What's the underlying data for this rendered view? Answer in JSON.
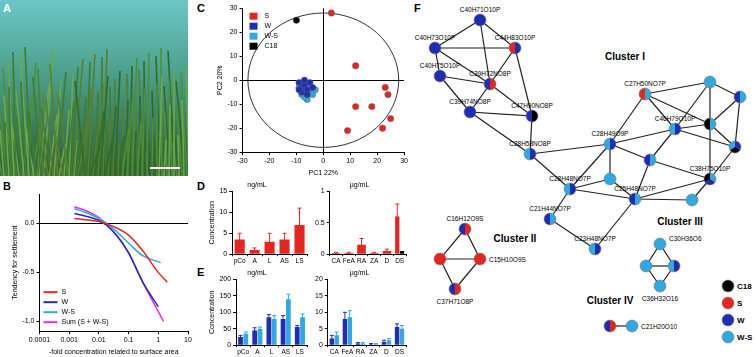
{
  "panel_labels": [
    "A",
    "B",
    "C",
    "D",
    "E",
    "F"
  ],
  "chart_data": [
    {
      "type": "line",
      "x_label": "-fold concentration related to surface area",
      "y_label": "Tendency for settlement",
      "log": "x",
      "xlim": [
        0.0001,
        10
      ],
      "xticks": [
        0.0001,
        0.001,
        0.01,
        0.1,
        1,
        10
      ],
      "ylim": [
        -1.1,
        0.3
      ],
      "yticks": [
        {
          "value": -1,
          "label": "-1.0"
        },
        {
          "value": -0.5,
          "label": "-0.5"
        },
        {
          "value": 0,
          "label": "0.0"
        }
      ],
      "grid": false,
      "legend": "lower left",
      "series": [
        {
          "name": "S",
          "color": "#e3261f",
          "x": [
            0.0015,
            0.003,
            0.01,
            0.03,
            0.1,
            0.3,
            1,
            2
          ],
          "values": [
            0.05,
            0.04,
            0.02,
            -0.03,
            -0.12,
            -0.28,
            -0.5,
            -0.6
          ]
        },
        {
          "name": "W",
          "color": "#1f2db5",
          "x": [
            0.0015,
            0.003,
            0.01,
            0.03,
            0.1,
            0.3,
            1
          ],
          "values": [
            0.1,
            0.08,
            0.03,
            -0.08,
            -0.3,
            -0.6,
            -0.85
          ]
        },
        {
          "name": "W-S",
          "color": "#2fa9e0",
          "x": [
            0.0015,
            0.003,
            0.01,
            0.03,
            0.1,
            0.3,
            1.2
          ],
          "values": [
            0.15,
            0.12,
            0.05,
            -0.05,
            -0.2,
            -0.33,
            -0.4
          ]
        },
        {
          "name": "Sum (S + W-S)",
          "color": "#e62ee6",
          "x": [
            0.0015,
            0.003,
            0.01,
            0.03,
            0.1,
            0.3,
            1,
            1.5
          ],
          "values": [
            0.17,
            0.14,
            0.06,
            -0.08,
            -0.3,
            -0.6,
            -0.9,
            -1.0
          ]
        }
      ]
    },
    {
      "type": "scatter",
      "x_label": "PC1 22%",
      "y_label": "PC2 20%",
      "xlim": [
        -30,
        30
      ],
      "xticks": [
        -30,
        -20,
        -10,
        0,
        10,
        20,
        30
      ],
      "ylim": [
        -30,
        30
      ],
      "yticks": [
        -30,
        -20,
        -10,
        0,
        10,
        20,
        30
      ],
      "grid": false,
      "legend": "upper left",
      "ellipse": {
        "center": [
          0,
          0
        ],
        "radii": [
          28,
          28
        ]
      },
      "series": [
        {
          "name": "S",
          "color": "#e3261f",
          "x": [
            3,
            12,
            12,
            18,
            23,
            24,
            25,
            22,
            9
          ],
          "values": [
            28,
            6,
            -11,
            -11,
            -3,
            -6,
            -16,
            -20,
            -21
          ]
        },
        {
          "name": "W",
          "color": "#1f2db5",
          "x": [
            -9,
            -8,
            -7,
            -6,
            -5,
            -8,
            -6,
            -4,
            -9,
            -7
          ],
          "values": [
            -1,
            -3,
            -2,
            -4,
            -1,
            -5,
            -6,
            -3,
            -4,
            0
          ]
        },
        {
          "name": "W-S",
          "color": "#2fa9e0",
          "x": [
            -8,
            -7,
            -6,
            -5,
            -9,
            -6,
            -4,
            -7,
            -5,
            -8,
            -3
          ],
          "values": [
            -2,
            -4,
            -2,
            -5,
            -3,
            -8,
            -6,
            -7,
            -3,
            -6,
            -4
          ]
        },
        {
          "name": "C18",
          "color": "#000000",
          "x": [
            -10
          ],
          "values": [
            25
          ]
        }
      ]
    },
    {
      "type": "bar",
      "title": "ng/mL",
      "y_label": "Concentration",
      "categories": [
        "pCo",
        "A",
        "L",
        "AS",
        "LS"
      ],
      "ylim": [
        0,
        15
      ],
      "yticks": [
        0,
        5,
        10,
        15
      ],
      "grid": false,
      "series": [
        {
          "color": "#e3261f",
          "values": [
            3.5,
            1,
            3,
            3.5,
            7
          ],
          "errors": [
            1.5,
            0.5,
            2,
            1.5,
            4
          ]
        }
      ]
    },
    {
      "type": "bar",
      "title": "µg/mL",
      "categories": [
        "CA",
        "FeA",
        "RA",
        "ZA",
        "D",
        "DS"
      ],
      "ylim": [
        0,
        1
      ],
      "yticks": [
        0,
        0.5,
        1
      ],
      "grid": false,
      "series": [
        {
          "color": "#e3261f",
          "values": [
            0.02,
            0.02,
            0.15,
            0.02,
            0.05,
            0.6
          ],
          "errors": [
            0.01,
            0.01,
            0.1,
            0.01,
            0.03,
            0.2
          ]
        },
        {
          "color": "#000000",
          "values": [
            null,
            null,
            null,
            null,
            null,
            0.05
          ]
        }
      ]
    },
    {
      "type": "bar",
      "title": "ng/mL",
      "y_label": "Concentration",
      "categories": [
        "pCo",
        "A",
        "L",
        "AS",
        "LS"
      ],
      "ylim": [
        0,
        200
      ],
      "yticks": [
        0,
        50,
        100,
        150,
        200
      ],
      "grid": false,
      "series": [
        {
          "color": "#1f2db5",
          "values": [
            25,
            45,
            85,
            80,
            55
          ],
          "errors": [
            5,
            8,
            8,
            10,
            5
          ]
        },
        {
          "color": "#2fa9e0",
          "values": [
            35,
            50,
            80,
            140,
            85
          ],
          "errors": [
            5,
            5,
            10,
            15,
            10
          ]
        }
      ]
    },
    {
      "type": "bar",
      "title": "µg/mL",
      "categories": [
        "CA",
        "FeA",
        "RA",
        "ZA",
        "D",
        "DS"
      ],
      "ylim": [
        0,
        20
      ],
      "yticks": [
        0,
        5,
        10,
        15,
        20
      ],
      "grid": false,
      "series": [
        {
          "color": "#1f2db5",
          "values": [
            2,
            8,
            0.5,
            0.3,
            1,
            5.5
          ],
          "errors": [
            1,
            2,
            0.3,
            0.2,
            0.5,
            1
          ]
        },
        {
          "color": "#2fa9e0",
          "values": [
            3,
            8.5,
            0.5,
            0.3,
            1.5,
            5
          ],
          "errors": [
            1,
            2,
            0.3,
            0.2,
            0.5,
            1
          ]
        }
      ]
    }
  ],
  "network": {
    "clusters": [
      "Cluster I",
      "Cluster II",
      "Cluster III",
      "Cluster IV"
    ],
    "legend": [
      {
        "name": "C18",
        "color": "#000000"
      },
      {
        "name": "S",
        "color": "#e3261f"
      },
      {
        "name": "W",
        "color": "#1f2db5"
      },
      {
        "name": "W-S",
        "color": "#2fa9e0"
      }
    ],
    "nodes": [
      {
        "label": "C40H71O10P",
        "groups": [
          "W"
        ]
      },
      {
        "label": "C40H73O10P",
        "groups": [
          "W"
        ]
      },
      {
        "label": "C44H83O10P",
        "groups": [
          "W",
          "S"
        ]
      },
      {
        "label": "C40H75O10P",
        "groups": [
          "W"
        ]
      },
      {
        "label": "C39H72NO8P",
        "groups": [
          "S",
          "W"
        ]
      },
      {
        "label": "C39H74NO8P",
        "groups": [
          "W"
        ]
      },
      {
        "label": "C47H90NO8P",
        "groups": [
          "C18",
          "W"
        ]
      },
      {
        "label": "C28H58NO8P",
        "groups": [
          "W",
          "W-S"
        ]
      },
      {
        "label": "C27H50NO7P",
        "groups": [
          "W-S",
          "S"
        ]
      },
      {
        "label": null,
        "groups": [
          "W-S"
        ]
      },
      {
        "label": null,
        "groups": [
          "W-S",
          "W"
        ]
      },
      {
        "label": "C46H79O10P",
        "groups": [
          "W",
          "W-S"
        ]
      },
      {
        "label": null,
        "groups": [
          "W-S",
          "C18"
        ]
      },
      {
        "label": "C28H49O9P",
        "groups": [
          "W",
          "W-S"
        ]
      },
      {
        "label": null,
        "groups": [
          "W-S",
          "W"
        ]
      },
      {
        "label": null,
        "groups": [
          "W",
          "C18",
          "W-S"
        ]
      },
      {
        "label": "C28H48NO7P",
        "groups": [
          "W",
          "W-S"
        ]
      },
      {
        "label": "C25H48NO7P",
        "groups": [
          "W-S",
          "W"
        ]
      },
      {
        "label": "C38H75O10P",
        "groups": [
          "W-S",
          "W",
          "C18"
        ]
      },
      {
        "label": null,
        "groups": [
          "W-S"
        ]
      },
      {
        "label": "C21H44NO7P",
        "groups": [
          "W-S",
          "W"
        ]
      },
      {
        "label": "C23H48NO7P",
        "groups": [
          "W",
          "W-S"
        ]
      },
      {
        "label": null,
        "groups": [
          "W-S"
        ]
      },
      {
        "label": "C16H12O9S",
        "groups": [
          "S",
          "W"
        ]
      },
      {
        "label": null,
        "groups": [
          "S"
        ]
      },
      {
        "label": "C15H10O9S",
        "groups": [
          "S"
        ]
      },
      {
        "label": "C37H71O8P",
        "groups": [
          "S",
          "W"
        ]
      },
      {
        "label": "C30H36O6",
        "groups": [
          "W-S"
        ]
      },
      {
        "label": null,
        "groups": [
          "W-S"
        ]
      },
      {
        "label": null,
        "groups": [
          "W",
          "W-S"
        ]
      },
      {
        "label": "C36H32O16",
        "groups": [
          "W-S"
        ]
      },
      {
        "label": null,
        "groups": [
          "S",
          "W"
        ]
      },
      {
        "label": "C21H20O10",
        "groups": [
          "W-S"
        ]
      }
    ],
    "edges": [
      [
        0,
        1
      ],
      [
        0,
        2
      ],
      [
        0,
        4
      ],
      [
        1,
        2
      ],
      [
        1,
        3
      ],
      [
        1,
        4
      ],
      [
        2,
        4
      ],
      [
        3,
        4
      ],
      [
        3,
        5
      ],
      [
        4,
        5
      ],
      [
        4,
        6
      ],
      [
        2,
        6
      ],
      [
        5,
        6
      ],
      [
        6,
        7
      ],
      [
        5,
        7
      ],
      [
        7,
        13
      ],
      [
        7,
        16
      ],
      [
        8,
        9
      ],
      [
        8,
        11
      ],
      [
        8,
        13
      ],
      [
        8,
        12
      ],
      [
        9,
        10
      ],
      [
        9,
        11
      ],
      [
        9,
        12
      ],
      [
        10,
        12
      ],
      [
        10,
        15
      ],
      [
        11,
        12
      ],
      [
        11,
        13
      ],
      [
        11,
        14
      ],
      [
        11,
        15
      ],
      [
        12,
        15
      ],
      [
        12,
        18
      ],
      [
        13,
        14
      ],
      [
        13,
        22
      ],
      [
        13,
        16
      ],
      [
        14,
        17
      ],
      [
        14,
        18
      ],
      [
        15,
        18
      ],
      [
        16,
        22
      ],
      [
        16,
        20
      ],
      [
        17,
        18
      ],
      [
        17,
        22
      ],
      [
        17,
        19
      ],
      [
        18,
        19
      ],
      [
        20,
        21
      ],
      [
        17,
        21
      ],
      [
        16,
        17
      ],
      [
        23,
        24
      ],
      [
        23,
        25
      ],
      [
        24,
        25
      ],
      [
        24,
        26
      ],
      [
        25,
        26
      ],
      [
        27,
        28
      ],
      [
        27,
        29
      ],
      [
        28,
        29
      ],
      [
        28,
        30
      ],
      [
        29,
        30
      ],
      [
        31,
        32
      ]
    ]
  }
}
